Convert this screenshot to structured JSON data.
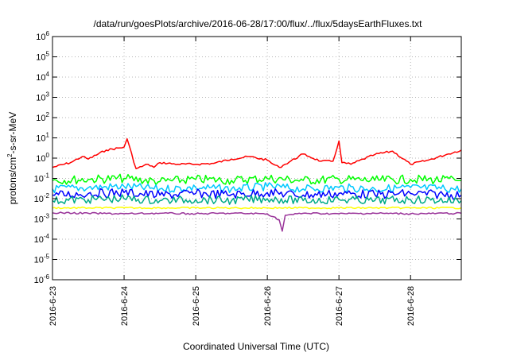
{
  "chart_data": {
    "type": "line",
    "title": "/data/run/goesPlots/archive/2016-06-28/17:00/flux/../flux/5daysEarthFluxes.txt",
    "xlabel": "Coordinated Universal Time (UTC)",
    "ylabel": {
      "prefix": "protons/cm",
      "sup": "2",
      "suffix": "-s-sr-MeV"
    },
    "y_scale": "log",
    "ylim": [
      1e-06,
      1000000.0
    ],
    "y_ticks": [
      {
        "value": 1e-06,
        "base": "10",
        "exp": "-6"
      },
      {
        "value": 1e-05,
        "base": "10",
        "exp": "-5"
      },
      {
        "value": 0.0001,
        "base": "10",
        "exp": "-4"
      },
      {
        "value": 0.001,
        "base": "10",
        "exp": "-3"
      },
      {
        "value": 0.01,
        "base": "10",
        "exp": "-2"
      },
      {
        "value": 0.1,
        "base": "10",
        "exp": "-1"
      },
      {
        "value": 1,
        "base": "10",
        "exp": "0"
      },
      {
        "value": 10,
        "base": "10",
        "exp": "1"
      },
      {
        "value": 100,
        "base": "10",
        "exp": "2"
      },
      {
        "value": 1000,
        "base": "10",
        "exp": "3"
      },
      {
        "value": 10000,
        "base": "10",
        "exp": "4"
      },
      {
        "value": 100000,
        "base": "10",
        "exp": "5"
      },
      {
        "value": 1000000,
        "base": "10",
        "exp": "6"
      }
    ],
    "xlim": [
      "2016-06-23T00:00",
      "2016-06-28T17:00"
    ],
    "x_ticks": [
      {
        "value": "2016-06-23T00:00",
        "label": "2016-6-23"
      },
      {
        "value": "2016-06-24T00:00",
        "label": "2016-6-24"
      },
      {
        "value": "2016-06-25T00:00",
        "label": "2016-6-25"
      },
      {
        "value": "2016-06-26T00:00",
        "label": "2016-6-26"
      },
      {
        "value": "2016-06-27T00:00",
        "label": "2016-6-27"
      },
      {
        "value": "2016-06-28T00:00",
        "label": "2016-6-28"
      }
    ],
    "grid": true,
    "legend": "none",
    "series": [
      {
        "color": "#ff0000",
        "x": [
          "2016-06-23T00:00",
          "2016-06-23T06:00",
          "2016-06-23T10:00",
          "2016-06-23T12:00",
          "2016-06-23T18:00",
          "2016-06-24T00:00",
          "2016-06-24T01:00",
          "2016-06-24T04:00",
          "2016-06-24T08:00",
          "2016-06-24T10:00",
          "2016-06-24T12:00",
          "2016-06-24T18:00",
          "2016-06-25T00:00",
          "2016-06-25T06:00",
          "2016-06-25T12:00",
          "2016-06-25T18:00",
          "2016-06-26T00:00",
          "2016-06-26T02:00",
          "2016-06-26T04:00",
          "2016-06-26T06:00",
          "2016-06-26T12:00",
          "2016-06-26T14:00",
          "2016-06-26T18:00",
          "2016-06-26T22:00",
          "2016-06-27T00:00",
          "2016-06-27T01:00",
          "2016-06-27T04:00",
          "2016-06-27T12:00",
          "2016-06-27T18:00",
          "2016-06-28T00:00",
          "2016-06-28T06:00",
          "2016-06-28T12:00",
          "2016-06-28T17:00"
        ],
        "values": [
          0.35,
          0.6,
          1.2,
          0.9,
          2.5,
          3.5,
          9,
          0.3,
          0.5,
          0.35,
          0.6,
          0.5,
          0.5,
          0.55,
          0.9,
          1.2,
          0.8,
          0.5,
          0.35,
          0.5,
          1.6,
          1.2,
          0.7,
          0.7,
          7,
          0.6,
          0.5,
          1.5,
          2.2,
          0.5,
          0.8,
          1.5,
          2.5
        ]
      },
      {
        "color": "#00ff00",
        "x": [
          "2016-06-23T00:00",
          "2016-06-23T12:00",
          "2016-06-24T00:00",
          "2016-06-24T12:00",
          "2016-06-25T00:00",
          "2016-06-25T12:00",
          "2016-06-26T00:00",
          "2016-06-26T12:00",
          "2016-06-27T00:00",
          "2016-06-27T12:00",
          "2016-06-28T00:00",
          "2016-06-28T17:00"
        ],
        "values": [
          0.08,
          0.09,
          0.1,
          0.07,
          0.09,
          0.08,
          0.1,
          0.08,
          0.09,
          0.08,
          0.09,
          0.08
        ]
      },
      {
        "color": "#00c8ff",
        "x": [
          "2016-06-23T00:00",
          "2016-06-23T12:00",
          "2016-06-24T00:00",
          "2016-06-24T12:00",
          "2016-06-25T00:00",
          "2016-06-25T12:00",
          "2016-06-26T00:00",
          "2016-06-26T12:00",
          "2016-06-27T00:00",
          "2016-06-27T12:00",
          "2016-06-28T00:00",
          "2016-06-28T17:00"
        ],
        "values": [
          0.03,
          0.035,
          0.04,
          0.03,
          0.035,
          0.03,
          0.04,
          0.03,
          0.035,
          0.03,
          0.035,
          0.03
        ]
      },
      {
        "color": "#0000ff",
        "x": [
          "2016-06-23T00:00",
          "2016-06-23T12:00",
          "2016-06-24T00:00",
          "2016-06-24T12:00",
          "2016-06-25T00:00",
          "2016-06-25T12:00",
          "2016-06-26T00:00",
          "2016-06-26T12:00",
          "2016-06-27T00:00",
          "2016-06-27T12:00",
          "2016-06-28T00:00",
          "2016-06-28T17:00"
        ],
        "values": [
          0.015,
          0.018,
          0.02,
          0.015,
          0.018,
          0.016,
          0.02,
          0.015,
          0.018,
          0.016,
          0.018,
          0.015
        ]
      },
      {
        "color": "#00aa88",
        "x": [
          "2016-06-23T00:00",
          "2016-06-23T12:00",
          "2016-06-24T00:00",
          "2016-06-24T12:00",
          "2016-06-25T00:00",
          "2016-06-25T12:00",
          "2016-06-26T00:00",
          "2016-06-26T12:00",
          "2016-06-27T00:00",
          "2016-06-27T12:00",
          "2016-06-28T00:00",
          "2016-06-28T17:00"
        ],
        "values": [
          0.008,
          0.009,
          0.01,
          0.008,
          0.009,
          0.008,
          0.01,
          0.008,
          0.009,
          0.008,
          0.009,
          0.008
        ]
      },
      {
        "color": "#ffff00",
        "x": [
          "2016-06-23T00:00",
          "2016-06-23T12:00",
          "2016-06-24T00:00",
          "2016-06-24T12:00",
          "2016-06-25T00:00",
          "2016-06-25T12:00",
          "2016-06-26T00:00",
          "2016-06-26T12:00",
          "2016-06-27T00:00",
          "2016-06-27T12:00",
          "2016-06-28T00:00",
          "2016-06-28T17:00"
        ],
        "values": [
          0.0035,
          0.0035,
          0.0035,
          0.0035,
          0.0035,
          0.0035,
          0.0035,
          0.0035,
          0.0035,
          0.0035,
          0.0035,
          0.0035
        ]
      },
      {
        "color": "#993399",
        "x": [
          "2016-06-23T00:00",
          "2016-06-23T12:00",
          "2016-06-24T00:00",
          "2016-06-24T12:00",
          "2016-06-25T00:00",
          "2016-06-25T12:00",
          "2016-06-26T00:00",
          "2016-06-26T04:00",
          "2016-06-26T05:00",
          "2016-06-26T06:00",
          "2016-06-26T12:00",
          "2016-06-27T00:00",
          "2016-06-27T12:00",
          "2016-06-28T00:00",
          "2016-06-28T17:00"
        ],
        "values": [
          0.002,
          0.0019,
          0.0018,
          0.0019,
          0.0018,
          0.0019,
          0.0018,
          0.0009,
          0.00025,
          0.0015,
          0.0019,
          0.0018,
          0.0019,
          0.0018,
          0.0019
        ]
      }
    ]
  }
}
